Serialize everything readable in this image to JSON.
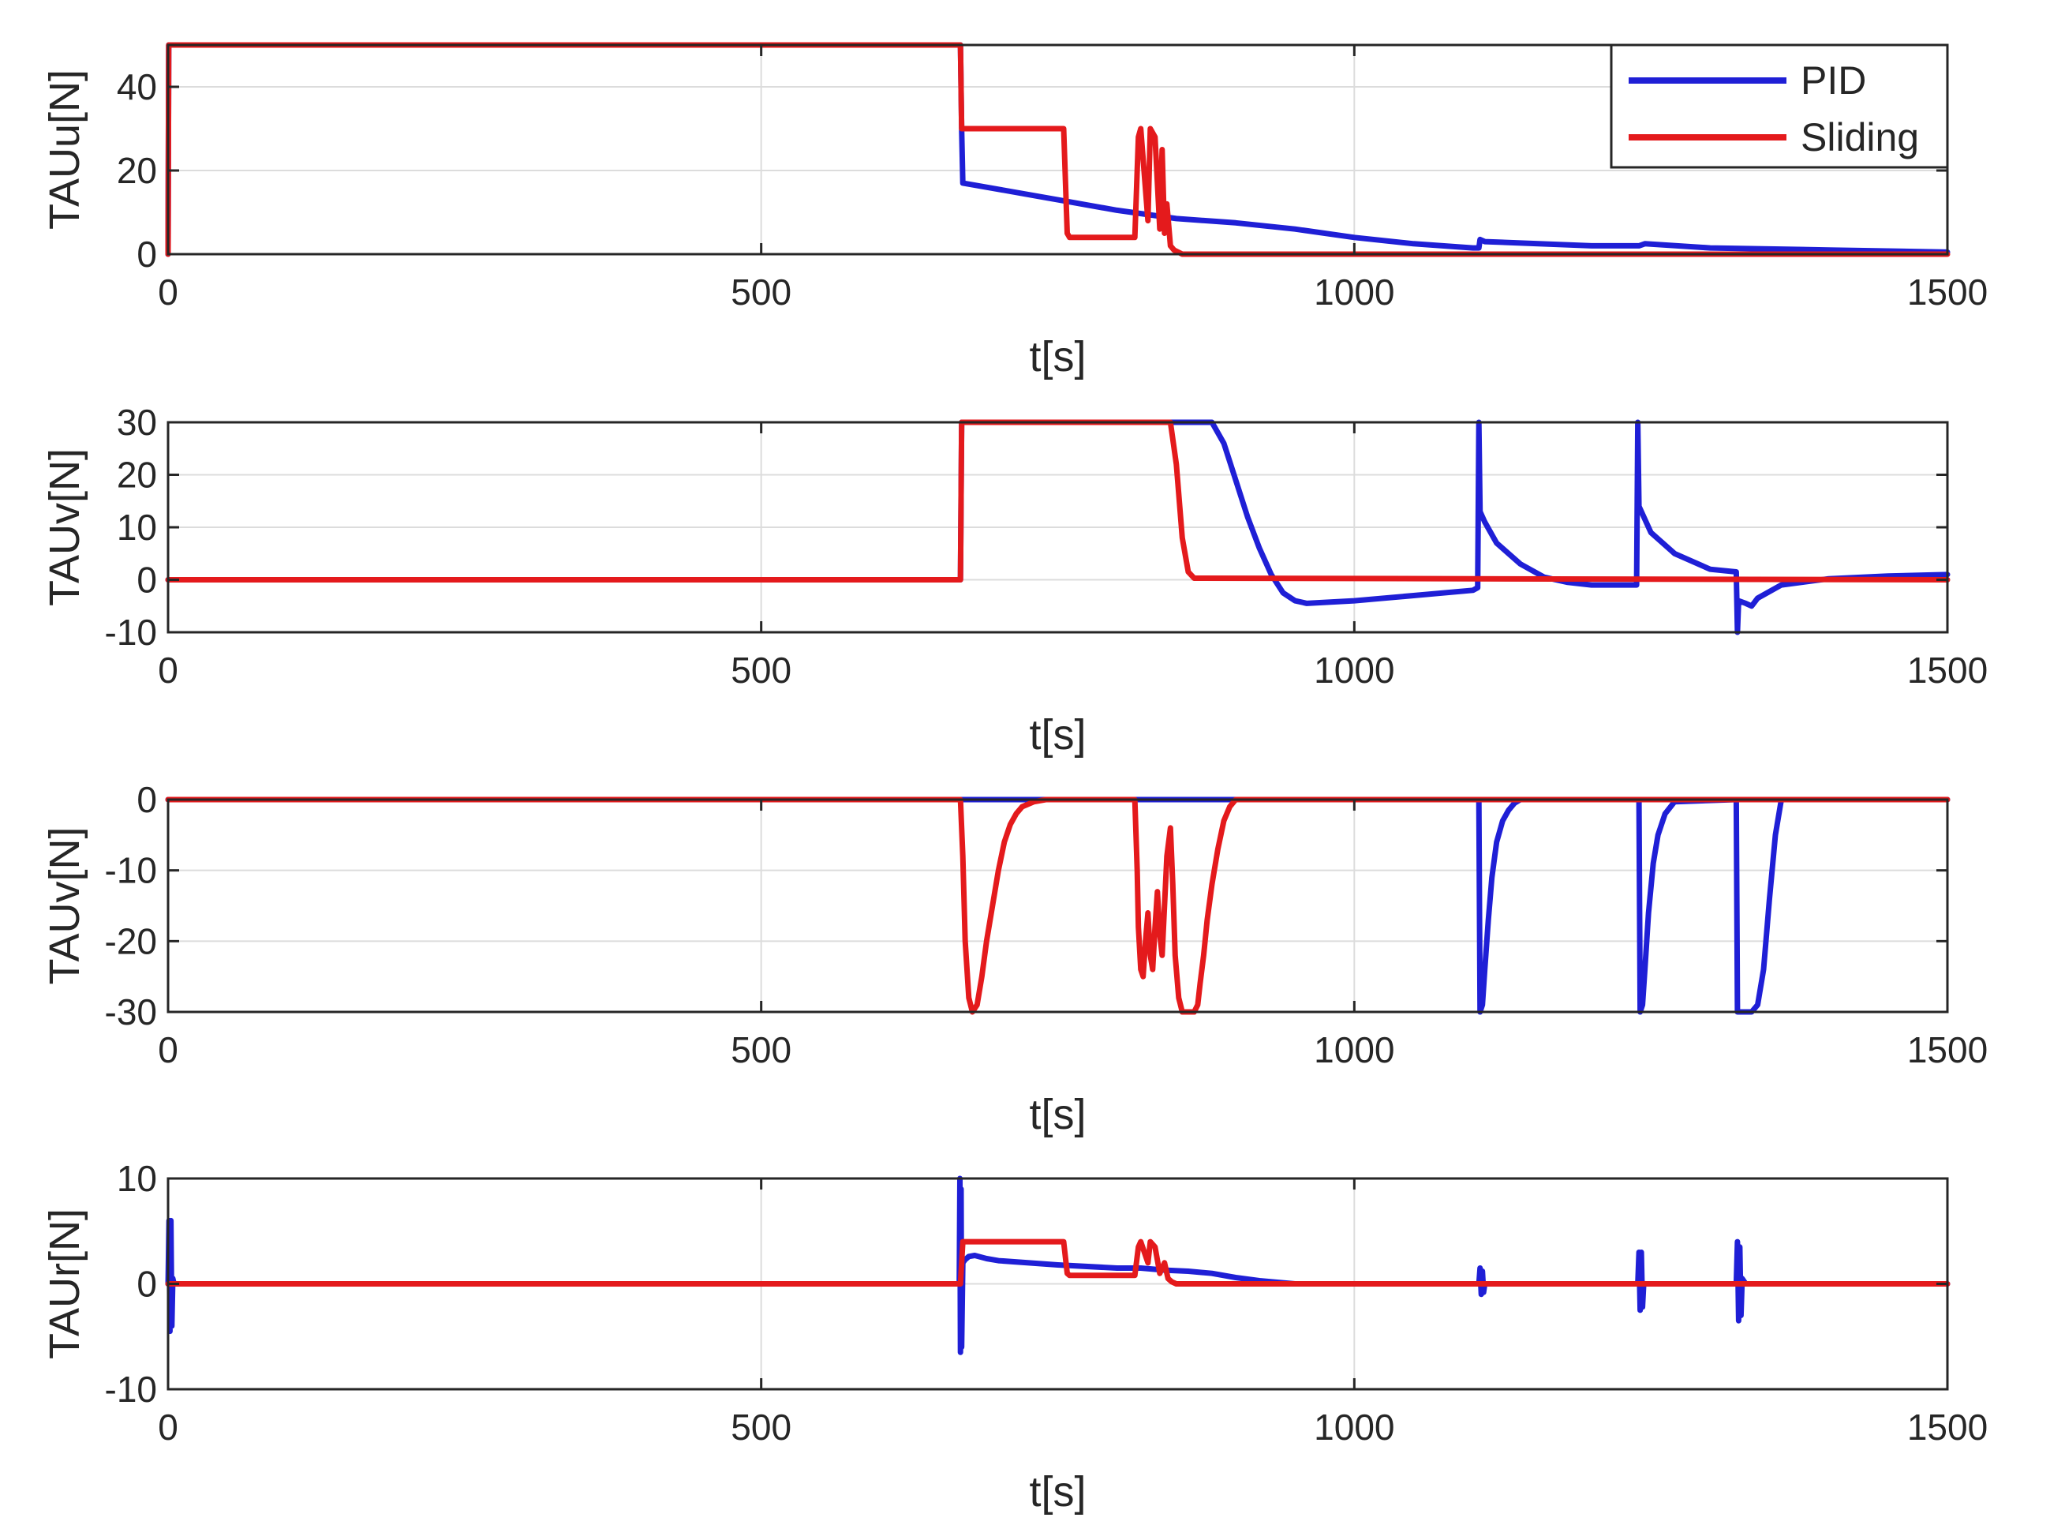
{
  "chart_data": [
    {
      "type": "line",
      "xlabel": "t[s]",
      "ylabel": "TAUu[N]",
      "xlim": [
        0,
        1500
      ],
      "ylim": [
        0,
        50
      ],
      "xticks": [
        0,
        500,
        1000,
        1500
      ],
      "yticks": [
        0,
        20,
        40
      ],
      "grid": true,
      "legend": {
        "position": "top-right",
        "entries": [
          "PID",
          "Sliding"
        ]
      },
      "series": [
        {
          "name": "PID",
          "color": "#1f1fd6",
          "x": [
            0,
            0.5,
            1,
            668,
            669,
            670,
            680,
            700,
            750,
            800,
            850,
            900,
            950,
            1000,
            1050,
            1100,
            1105,
            1106,
            1110,
            1200,
            1240,
            1245,
            1300,
            1400,
            1500
          ],
          "y": [
            0,
            50,
            50,
            50,
            30,
            17,
            16.5,
            15.5,
            13,
            10.5,
            8.5,
            7.5,
            6,
            4,
            2.5,
            1.5,
            1.5,
            3.5,
            3,
            2,
            2,
            2.5,
            1.5,
            1,
            0.5
          ]
        },
        {
          "name": "Sliding",
          "color": "#e41a1c",
          "x": [
            0,
            0.5,
            1,
            668,
            669,
            670,
            755,
            758,
            760,
            815,
            818,
            820,
            826,
            828,
            832,
            836,
            838,
            840,
            842,
            845,
            848,
            855,
            1500
          ],
          "y": [
            0,
            50,
            50,
            50,
            30,
            30,
            30,
            5,
            4,
            4,
            28,
            30,
            8,
            30,
            28,
            6,
            25,
            5,
            12,
            2,
            1,
            0,
            0
          ]
        }
      ]
    },
    {
      "type": "line",
      "xlabel": "t[s]",
      "ylabel": "TAUv[N]",
      "xlim": [
        0,
        1500
      ],
      "ylim": [
        -10,
        30
      ],
      "xticks": [
        0,
        500,
        1000,
        1500
      ],
      "yticks": [
        -10,
        0,
        10,
        20,
        30
      ],
      "grid": true,
      "series": [
        {
          "name": "PID",
          "color": "#1f1fd6",
          "x": [
            0,
            668,
            669,
            670,
            845,
            875,
            880,
            890,
            900,
            910,
            920,
            930,
            940,
            950,
            960,
            1000,
            1050,
            1100,
            1104,
            1105,
            1106,
            1110,
            1120,
            1140,
            1160,
            1180,
            1200,
            1238,
            1239,
            1240,
            1250,
            1270,
            1300,
            1322,
            1323,
            1324,
            1330,
            1335,
            1340,
            1360,
            1400,
            1450,
            1500
          ],
          "y": [
            0,
            0,
            30,
            30,
            30,
            30,
            30,
            26,
            19,
            12,
            6,
            1,
            -2.5,
            -4,
            -4.5,
            -4,
            -3,
            -2,
            -1.5,
            30,
            13,
            11,
            7,
            3,
            0.5,
            -0.5,
            -1,
            -1,
            30,
            14,
            9,
            5,
            2,
            1.5,
            -10,
            -4,
            -4.5,
            -5,
            -3.5,
            -1,
            0.2,
            0.7,
            1
          ]
        },
        {
          "name": "Sliding",
          "color": "#e41a1c",
          "x": [
            0,
            668,
            669,
            670,
            840,
            845,
            850,
            855,
            860,
            865,
            1500
          ],
          "y": [
            0,
            0,
            30,
            30,
            30,
            30,
            22,
            8,
            1.5,
            0.3,
            0
          ]
        }
      ]
    },
    {
      "type": "line",
      "xlabel": "t[s]",
      "ylabel": "TAUv[N]",
      "xlim": [
        0,
        1500
      ],
      "ylim": [
        -30,
        0
      ],
      "xticks": [
        0,
        500,
        1000,
        1500
      ],
      "yticks": [
        -30,
        -20,
        -10,
        0
      ],
      "grid": true,
      "series": [
        {
          "name": "PID",
          "color": "#1f1fd6",
          "x": [
            0,
            1105,
            1106,
            1108,
            1110,
            1113,
            1116,
            1120,
            1125,
            1130,
            1135,
            1140,
            1240,
            1241,
            1243,
            1245,
            1248,
            1252,
            1256,
            1262,
            1270,
            1322,
            1323,
            1326,
            1330,
            1335,
            1340,
            1345,
            1350,
            1355,
            1360,
            1500
          ],
          "y": [
            0,
            0,
            -30,
            -29,
            -24,
            -17,
            -11,
            -6,
            -3,
            -1.5,
            -0.5,
            0,
            0,
            -30,
            -29,
            -24,
            -16,
            -9,
            -5,
            -2,
            -0.3,
            0,
            -30,
            -30,
            -30,
            -30,
            -29,
            -24,
            -14,
            -5,
            0,
            0
          ]
        },
        {
          "name": "Sliding",
          "color": "#e41a1c",
          "x": [
            0,
            668,
            670,
            672,
            675,
            678,
            682,
            686,
            690,
            695,
            700,
            705,
            710,
            715,
            720,
            730,
            740,
            815,
            817,
            818,
            820,
            822,
            824,
            826,
            828,
            830,
            832,
            834,
            836,
            838,
            842,
            845,
            847,
            849,
            852,
            855,
            860,
            865,
            868,
            870,
            873,
            876,
            880,
            885,
            890,
            895,
            900,
            1500
          ],
          "y": [
            0,
            0,
            -8,
            -20,
            -28,
            -30,
            -29,
            -25,
            -20,
            -15,
            -10,
            -6,
            -3.5,
            -2,
            -1,
            -0.3,
            0,
            0,
            -10,
            -18,
            -24,
            -25,
            -20,
            -16,
            -22,
            -24,
            -18,
            -13,
            -19,
            -22,
            -8,
            -4,
            -12,
            -22,
            -28,
            -30,
            -30,
            -30,
            -29,
            -26,
            -22,
            -17,
            -12,
            -7,
            -3,
            -1,
            0,
            0
          ]
        }
      ]
    },
    {
      "type": "line",
      "xlabel": "t[s]",
      "ylabel": "TAUr[N]",
      "xlim": [
        0,
        1500
      ],
      "ylim": [
        -10,
        10
      ],
      "xticks": [
        0,
        500,
        1000,
        1500
      ],
      "yticks": [
        -10,
        0,
        10
      ],
      "grid": true,
      "series": [
        {
          "name": "PID",
          "color": "#1f1fd6",
          "x": [
            0,
            0.8,
            1.6,
            2.4,
            3.2,
            4,
            5,
            667,
            667.5,
            668,
            668.5,
            669,
            670,
            672,
            675,
            680,
            690,
            700,
            750,
            800,
            820,
            840,
            860,
            880,
            900,
            920,
            950,
            1000,
            1105,
            1106,
            1107,
            1108,
            1109,
            1110,
            1239,
            1240,
            1241,
            1242,
            1243,
            1244,
            1322,
            1323,
            1324,
            1325,
            1326,
            1327,
            1330,
            1500
          ],
          "y": [
            0,
            6,
            -4.5,
            6,
            -4,
            0.5,
            0,
            0,
            10,
            -6.5,
            9,
            -6,
            2,
            2.3,
            2.6,
            2.7,
            2.4,
            2.2,
            1.8,
            1.5,
            1.5,
            1.3,
            1.2,
            1,
            0.6,
            0.3,
            0,
            0,
            0,
            1.5,
            -1,
            1.2,
            -0.8,
            0,
            0,
            3,
            -2.5,
            3,
            -2.2,
            0,
            0,
            4,
            -3.5,
            3.5,
            -3,
            0.5,
            0,
            0
          ]
        },
        {
          "name": "Sliding",
          "color": "#e41a1c",
          "x": [
            0,
            668,
            670,
            672,
            755,
            758,
            760,
            815,
            818,
            820,
            826,
            828,
            832,
            836,
            840,
            843,
            846,
            850,
            1500
          ],
          "y": [
            0,
            0,
            4,
            4,
            4,
            1,
            0.8,
            0.8,
            3.5,
            4,
            2,
            4,
            3.5,
            1,
            2,
            0.5,
            0.2,
            0,
            0
          ]
        }
      ]
    }
  ]
}
